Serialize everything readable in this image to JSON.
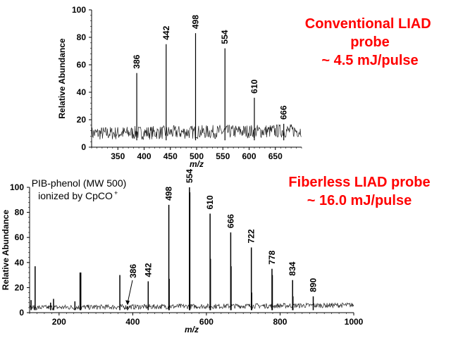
{
  "chart_data": [
    {
      "type": "line",
      "subtype": "mass-spectrum",
      "xlabel": "m/z",
      "ylabel": "Relative Abundance",
      "xlim": [
        300,
        700
      ],
      "ylim": [
        0,
        100
      ],
      "xticks": [
        350,
        400,
        450,
        500,
        550,
        600,
        650
      ],
      "yticks": [
        0,
        20,
        40,
        60,
        80,
        100
      ],
      "grid": false,
      "baseline_noise": [
        5,
        15
      ],
      "annotation_lines": [
        "Conventional LIAD probe",
        "~ 4.5 mJ/pulse"
      ],
      "annotation_color": "#ff0000",
      "peaks": [
        {
          "mz": 386,
          "value": 54,
          "label": "386"
        },
        {
          "mz": 442,
          "value": 75,
          "label": "442"
        },
        {
          "mz": 498,
          "value": 83,
          "label": "498"
        },
        {
          "mz": 554,
          "value": 72,
          "label": "554"
        },
        {
          "mz": 610,
          "value": 36,
          "label": "610"
        },
        {
          "mz": 666,
          "value": 17,
          "label": "666"
        }
      ]
    },
    {
      "type": "line",
      "subtype": "mass-spectrum",
      "xlabel": "m/z",
      "ylabel": "Relative Abundance",
      "xlim": [
        120,
        1000
      ],
      "ylim": [
        0,
        100
      ],
      "xticks": [
        200,
        400,
        600,
        800,
        1000
      ],
      "yticks": [
        0,
        20,
        40,
        60,
        80,
        100
      ],
      "grid": false,
      "baseline_noise": [
        2,
        6
      ],
      "annotation_lines": [
        "Fiberless LIAD probe",
        "~ 16.0 mJ/pulse"
      ],
      "annotation_color": "#ff0000",
      "sample_lines": [
        "PIB-phenol (MW 500)",
        "ionized by CpCO",
        "+"
      ],
      "arrow_label": "386",
      "peaks": [
        {
          "mz": 124,
          "value": 10,
          "label": ""
        },
        {
          "mz": 135,
          "value": 37,
          "label": ""
        },
        {
          "mz": 177,
          "value": 8,
          "label": ""
        },
        {
          "mz": 185,
          "value": 11,
          "label": ""
        },
        {
          "mz": 243,
          "value": 9,
          "label": ""
        },
        {
          "mz": 257,
          "value": 32,
          "label": ""
        },
        {
          "mz": 259,
          "value": 32,
          "label": ""
        },
        {
          "mz": 365,
          "value": 30,
          "label": ""
        },
        {
          "mz": 386,
          "value": 5,
          "label": ""
        },
        {
          "mz": 442,
          "value": 25,
          "label": "442"
        },
        {
          "mz": 498,
          "value": 86,
          "label": "498"
        },
        {
          "mz": 499,
          "value": 27,
          "label": ""
        },
        {
          "mz": 554,
          "value": 100,
          "label": "554"
        },
        {
          "mz": 555,
          "value": 96,
          "label": ""
        },
        {
          "mz": 610,
          "value": 79,
          "label": "610"
        },
        {
          "mz": 611,
          "value": 43,
          "label": ""
        },
        {
          "mz": 666,
          "value": 64,
          "label": "666"
        },
        {
          "mz": 667,
          "value": 37,
          "label": ""
        },
        {
          "mz": 722,
          "value": 52,
          "label": "722"
        },
        {
          "mz": 723,
          "value": 16,
          "label": ""
        },
        {
          "mz": 778,
          "value": 35,
          "label": "778"
        },
        {
          "mz": 779,
          "value": 30,
          "label": ""
        },
        {
          "mz": 834,
          "value": 26,
          "label": "834"
        },
        {
          "mz": 835,
          "value": 13,
          "label": ""
        },
        {
          "mz": 890,
          "value": 13,
          "label": "890"
        }
      ]
    }
  ]
}
